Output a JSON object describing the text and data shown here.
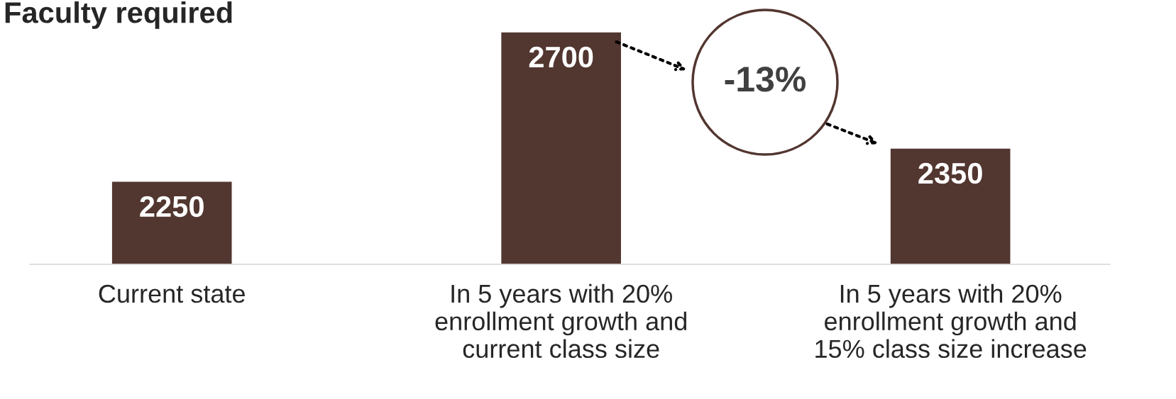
{
  "chart_data": {
    "type": "bar",
    "title": "Faculty required",
    "categories": [
      "Current state",
      "In 5 years with 20%\nenrollment growth and\ncurrent class size",
      "In 5 years with 20%\nenrollment growth and\n15% class size increase"
    ],
    "values": [
      2250,
      2700,
      2350
    ],
    "color": "#523630",
    "ylim": [
      2000,
      2700
    ],
    "data_labels": true,
    "grid": false,
    "legend": false,
    "annotations": [
      "-13%"
    ]
  }
}
